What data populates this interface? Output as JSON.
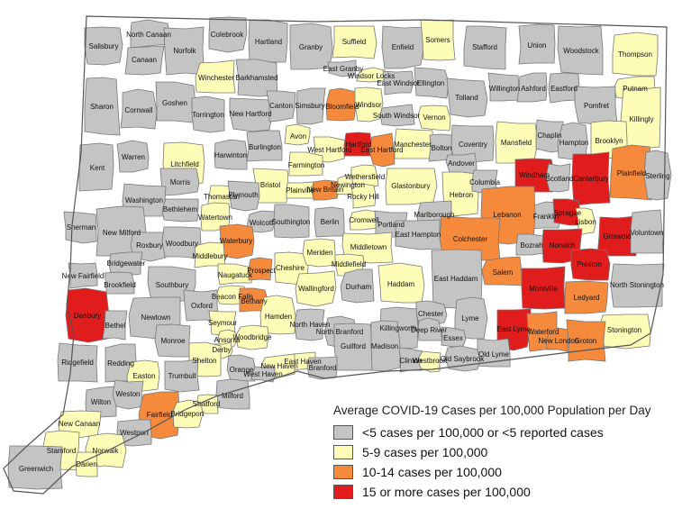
{
  "colors": {
    "gray": "#c4c4c4",
    "yellow": "#fdfdb8",
    "orange": "#f58a3d",
    "red": "#e01c1c",
    "border": "#777777"
  },
  "legend": {
    "title": "Average COVID-19 Cases per 100,000 Population per Day",
    "items": [
      {
        "label": "<5 cases per 100,000 or <5 reported cases",
        "color": "gray"
      },
      {
        "label": "5-9 cases per 100,000",
        "color": "yellow"
      },
      {
        "label": "10-14 cases per 100,000",
        "color": "orange"
      },
      {
        "label": "15 or more cases per 100,000",
        "color": "red"
      }
    ]
  },
  "towns": [
    {
      "name": "Salisbury",
      "category": "gray"
    },
    {
      "name": "North Canaan",
      "category": "gray"
    },
    {
      "name": "Canaan",
      "category": "gray"
    },
    {
      "name": "Norfolk",
      "category": "gray"
    },
    {
      "name": "Colebrook",
      "category": "gray"
    },
    {
      "name": "Hartland",
      "category": "gray"
    },
    {
      "name": "Granby",
      "category": "gray"
    },
    {
      "name": "Suffield",
      "category": "yellow"
    },
    {
      "name": "Enfield",
      "category": "gray"
    },
    {
      "name": "Somers",
      "category": "yellow"
    },
    {
      "name": "Stafford",
      "category": "gray"
    },
    {
      "name": "Union",
      "category": "gray"
    },
    {
      "name": "Woodstock",
      "category": "gray"
    },
    {
      "name": "Thompson",
      "category": "yellow"
    },
    {
      "name": "Winchester",
      "category": "yellow"
    },
    {
      "name": "Barkhamsted",
      "category": "gray"
    },
    {
      "name": "East Granby",
      "category": "gray"
    },
    {
      "name": "Windsor Locks",
      "category": "yellow"
    },
    {
      "name": "East Windsor",
      "category": "gray"
    },
    {
      "name": "Ellington",
      "category": "gray"
    },
    {
      "name": "Tolland",
      "category": "gray"
    },
    {
      "name": "Willington",
      "category": "gray"
    },
    {
      "name": "Ashford",
      "category": "gray"
    },
    {
      "name": "Eastford",
      "category": "gray"
    },
    {
      "name": "Putnam",
      "category": "yellow"
    },
    {
      "name": "Sharon",
      "category": "gray"
    },
    {
      "name": "Cornwall",
      "category": "gray"
    },
    {
      "name": "Goshen",
      "category": "gray"
    },
    {
      "name": "Torrington",
      "category": "gray"
    },
    {
      "name": "New Hartford",
      "category": "gray"
    },
    {
      "name": "Canton",
      "category": "gray"
    },
    {
      "name": "Simsbury",
      "category": "gray"
    },
    {
      "name": "Bloomfield",
      "category": "orange"
    },
    {
      "name": "Windsor",
      "category": "yellow"
    },
    {
      "name": "South Windsor",
      "category": "gray"
    },
    {
      "name": "Vernon",
      "category": "yellow"
    },
    {
      "name": "Pomfret",
      "category": "gray"
    },
    {
      "name": "Killingly",
      "category": "yellow"
    },
    {
      "name": "Kent",
      "category": "gray"
    },
    {
      "name": "Warren",
      "category": "gray"
    },
    {
      "name": "Litchfield",
      "category": "yellow"
    },
    {
      "name": "Harwinton",
      "category": "gray"
    },
    {
      "name": "Burlington",
      "category": "gray"
    },
    {
      "name": "Avon",
      "category": "yellow"
    },
    {
      "name": "West Hartford",
      "category": "yellow"
    },
    {
      "name": "Hartford",
      "category": "red"
    },
    {
      "name": "East Hartford",
      "category": "orange"
    },
    {
      "name": "Manchester",
      "category": "yellow"
    },
    {
      "name": "Bolton",
      "category": "gray"
    },
    {
      "name": "Coventry",
      "category": "gray"
    },
    {
      "name": "Mansfield",
      "category": "yellow"
    },
    {
      "name": "Chaplin",
      "category": "gray"
    },
    {
      "name": "Hampton",
      "category": "gray"
    },
    {
      "name": "Brooklyn",
      "category": "yellow"
    },
    {
      "name": "Farmington",
      "category": "yellow"
    },
    {
      "name": "Windham",
      "category": "red"
    },
    {
      "name": "Canterbury",
      "category": "red"
    },
    {
      "name": "Plainfield",
      "category": "orange"
    },
    {
      "name": "Sterling",
      "category": "gray"
    },
    {
      "name": "Morris",
      "category": "gray"
    },
    {
      "name": "Bristol",
      "category": "yellow"
    },
    {
      "name": "Plainville",
      "category": "yellow"
    },
    {
      "name": "New Britain",
      "category": "orange"
    },
    {
      "name": "Newington",
      "category": "yellow"
    },
    {
      "name": "Wethersfield",
      "category": "yellow"
    },
    {
      "name": "Rocky Hill",
      "category": "yellow"
    },
    {
      "name": "Glastonbury",
      "category": "yellow"
    },
    {
      "name": "Andover",
      "category": "gray"
    },
    {
      "name": "Hebron",
      "category": "yellow"
    },
    {
      "name": "Columbia",
      "category": "gray"
    },
    {
      "name": "Scotland",
      "category": "gray"
    },
    {
      "name": "Washington",
      "category": "gray"
    },
    {
      "name": "Bethlehem",
      "category": "gray"
    },
    {
      "name": "Thomaston",
      "category": "yellow"
    },
    {
      "name": "Plymouth",
      "category": "gray"
    },
    {
      "name": "Watertown",
      "category": "yellow"
    },
    {
      "name": "Franklin",
      "category": "gray"
    },
    {
      "name": "Sprague",
      "category": "red"
    },
    {
      "name": "Lisbon",
      "category": "yellow"
    },
    {
      "name": "Griswold",
      "category": "red"
    },
    {
      "name": "Voluntown",
      "category": "gray"
    },
    {
      "name": "Sherman",
      "category": "gray"
    },
    {
      "name": "New Milford",
      "category": "gray"
    },
    {
      "name": "Roxbury",
      "category": "gray"
    },
    {
      "name": "Woodbury",
      "category": "gray"
    },
    {
      "name": "Wolcott",
      "category": "gray"
    },
    {
      "name": "Southington",
      "category": "gray"
    },
    {
      "name": "Berlin",
      "category": "gray"
    },
    {
      "name": "Cromwell",
      "category": "yellow"
    },
    {
      "name": "Portland",
      "category": "gray"
    },
    {
      "name": "Marlborough",
      "category": "gray"
    },
    {
      "name": "Lebanon",
      "category": "orange"
    },
    {
      "name": "East Hampton",
      "category": "gray"
    },
    {
      "name": "Colchester",
      "category": "orange"
    },
    {
      "name": "Bozrah",
      "category": "gray"
    },
    {
      "name": "Norwich",
      "category": "red"
    },
    {
      "name": "Middletown",
      "category": "yellow"
    },
    {
      "name": "Waterbury",
      "category": "orange"
    },
    {
      "name": "Bridgewater",
      "category": "gray"
    },
    {
      "name": "Middlebury",
      "category": "yellow"
    },
    {
      "name": "Cheshire",
      "category": "yellow"
    },
    {
      "name": "Meriden",
      "category": "yellow"
    },
    {
      "name": "Middlefield",
      "category": "yellow"
    },
    {
      "name": "Naugatuck",
      "category": "yellow"
    },
    {
      "name": "Prospect",
      "category": "orange"
    },
    {
      "name": "Preston",
      "category": "red"
    },
    {
      "name": "New Fairfield",
      "category": "gray"
    },
    {
      "name": "Brookfield",
      "category": "gray"
    },
    {
      "name": "Southbury",
      "category": "gray"
    },
    {
      "name": "Wallingford",
      "category": "yellow"
    },
    {
      "name": "Durham",
      "category": "gray"
    },
    {
      "name": "Haddam",
      "category": "yellow"
    },
    {
      "name": "East Haddam",
      "category": "gray"
    },
    {
      "name": "Salem",
      "category": "orange"
    },
    {
      "name": "Montville",
      "category": "red"
    },
    {
      "name": "North Stonington",
      "category": "gray"
    },
    {
      "name": "Beacon Falls",
      "category": "yellow"
    },
    {
      "name": "Bethany",
      "category": "orange"
    },
    {
      "name": "Ledyard",
      "category": "orange"
    },
    {
      "name": "Danbury",
      "category": "red"
    },
    {
      "name": "Bethel",
      "category": "gray"
    },
    {
      "name": "Newtown",
      "category": "gray"
    },
    {
      "name": "Oxford",
      "category": "gray"
    },
    {
      "name": "Seymour",
      "category": "yellow"
    },
    {
      "name": "Hamden",
      "category": "yellow"
    },
    {
      "name": "North Haven",
      "category": "gray"
    },
    {
      "name": "North Branford",
      "category": "gray"
    },
    {
      "name": "Chester",
      "category": "gray"
    },
    {
      "name": "Lyme",
      "category": "gray"
    },
    {
      "name": "East Lyme",
      "category": "red"
    },
    {
      "name": "Waterford",
      "category": "orange"
    },
    {
      "name": "Stonington",
      "category": "yellow"
    },
    {
      "name": "Ansonia",
      "category": "yellow"
    },
    {
      "name": "Derby",
      "category": "yellow"
    },
    {
      "name": "Killingworth",
      "category": "gray"
    },
    {
      "name": "Deep River",
      "category": "gray"
    },
    {
      "name": "Essex",
      "category": "gray"
    },
    {
      "name": "New London",
      "category": "orange"
    },
    {
      "name": "Groton",
      "category": "orange"
    },
    {
      "name": "Monroe",
      "category": "gray"
    },
    {
      "name": "Woodbridge",
      "category": "yellow"
    },
    {
      "name": "Guilford",
      "category": "gray"
    },
    {
      "name": "Madison",
      "category": "gray"
    },
    {
      "name": "Ridgefield",
      "category": "gray"
    },
    {
      "name": "Redding",
      "category": "gray"
    },
    {
      "name": "Shelton",
      "category": "yellow"
    },
    {
      "name": "East Haven",
      "category": "yellow"
    },
    {
      "name": "Old Lyme",
      "category": "gray"
    },
    {
      "name": "Orange",
      "category": "gray"
    },
    {
      "name": "New Haven",
      "category": "yellow"
    },
    {
      "name": "Branford",
      "category": "gray"
    },
    {
      "name": "Clinton",
      "category": "gray"
    },
    {
      "name": "Westbrook",
      "category": "yellow"
    },
    {
      "name": "Old Saybrook",
      "category": "gray"
    },
    {
      "name": "Easton",
      "category": "yellow"
    },
    {
      "name": "Trumbull",
      "category": "gray"
    },
    {
      "name": "Milford",
      "category": "gray"
    },
    {
      "name": "West Haven",
      "category": "gray"
    },
    {
      "name": "Wilton",
      "category": "gray"
    },
    {
      "name": "Weston",
      "category": "gray"
    },
    {
      "name": "Stratford",
      "category": "yellow"
    },
    {
      "name": "Fairfield",
      "category": "orange"
    },
    {
      "name": "Bridgeport",
      "category": "yellow"
    },
    {
      "name": "New Canaan",
      "category": "yellow"
    },
    {
      "name": "Westport",
      "category": "gray"
    },
    {
      "name": "Stamford",
      "category": "yellow"
    },
    {
      "name": "Norwalk",
      "category": "yellow"
    },
    {
      "name": "Darien",
      "category": "yellow"
    },
    {
      "name": "Greenwich",
      "category": "gray"
    }
  ]
}
